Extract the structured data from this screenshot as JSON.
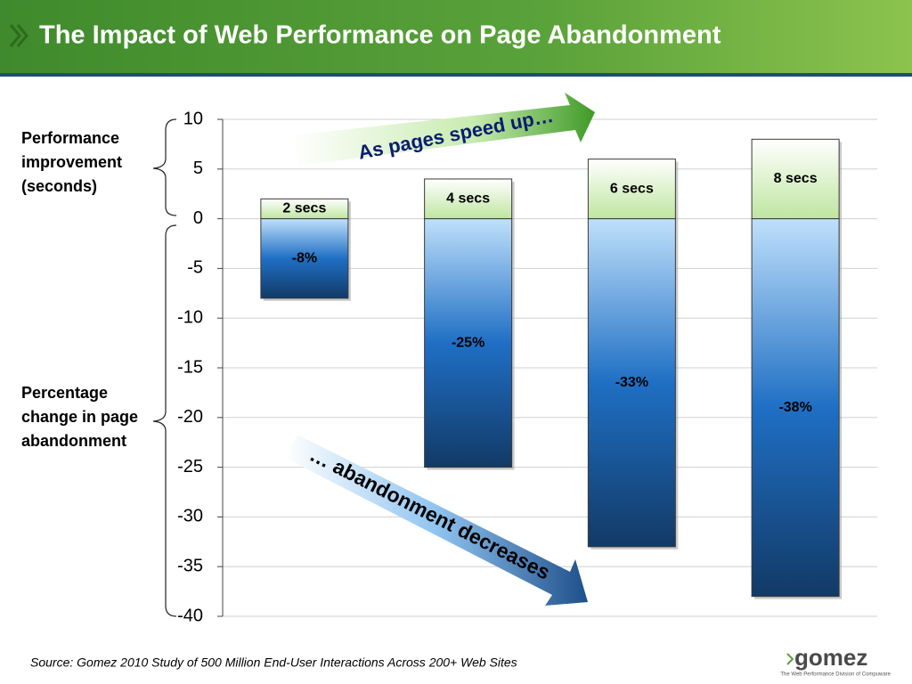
{
  "title": "The Impact of Web Performance on Page Abandonment",
  "left_labels": [
    "Performance improvement (seconds)",
    "Percentage change in page abandonment"
  ],
  "arrows": [
    "As pages speed up…",
    "… abandonment decreases"
  ],
  "source": "Source:  Gomez 2010 Study of 500 Million End-User Interactions Across 200+ Web Sites",
  "logo": {
    "name": "gomez",
    "tagline": "The Web Performance Division of Compuware"
  },
  "chart_data": {
    "type": "bar",
    "ylim": [
      -40,
      10
    ],
    "yticks": [
      10,
      5,
      0,
      -5,
      -10,
      -15,
      -20,
      -25,
      -30,
      -35,
      -40
    ],
    "grid": true,
    "series": [
      {
        "color": "#bfe6a0",
        "values": [
          2,
          4,
          6,
          8
        ],
        "value_labels": [
          "2 secs",
          "4 secs",
          "6 secs",
          "8 secs"
        ]
      },
      {
        "color": "#1f6fc4",
        "values": [
          -8,
          -25,
          -33,
          -38
        ],
        "value_labels": [
          "-8%",
          "-25%",
          "-33%",
          "-38%"
        ]
      }
    ]
  }
}
